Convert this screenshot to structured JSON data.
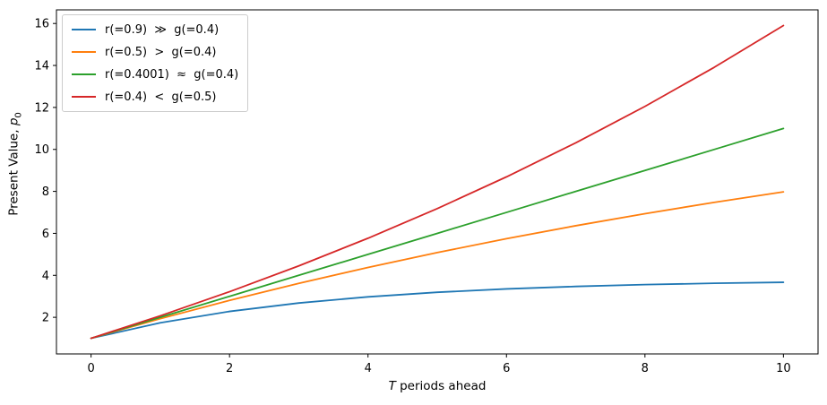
{
  "chart_data": {
    "type": "line",
    "title": "",
    "background_color": "#ffffff",
    "xlabel_var": "T",
    "xlabel_rest": " periods ahead",
    "ylabel_prefix": "Present Value, ",
    "ylabel_var": "p",
    "ylabel_sub": "0",
    "x": [
      0,
      1,
      2,
      3,
      4,
      5,
      6,
      7,
      8,
      9,
      10
    ],
    "xticks": [
      0,
      2,
      4,
      6,
      8,
      10
    ],
    "yticks": [
      2,
      4,
      6,
      8,
      10,
      12,
      14,
      16
    ],
    "xlim": [
      -0.5,
      10.5
    ],
    "ylim": [
      0.255,
      16.649
    ],
    "grid": false,
    "legend_position": "upper left",
    "series": [
      {
        "name": "r(=0.9)  ≫  g(=0.4)",
        "color": "#1f77b4",
        "values": [
          1.0,
          1.7368,
          2.2798,
          2.6799,
          2.9746,
          3.1918,
          3.3519,
          3.4698,
          3.5567,
          3.6207,
          3.6679
        ]
      },
      {
        "name": "r(=0.5)  >  g(=0.4)",
        "color": "#ff7f0e",
        "values": [
          1.0,
          1.9333,
          2.8044,
          3.6175,
          4.3763,
          5.0846,
          5.7456,
          6.3626,
          6.9384,
          7.4758,
          7.9774
        ]
      },
      {
        "name": "r(=0.4001)  ≈  g(=0.4)",
        "color": "#2ca02c",
        "values": [
          1.0,
          1.9999,
          2.9998,
          3.9996,
          4.9993,
          5.9989,
          6.9985,
          7.998,
          8.9974,
          9.9968,
          10.9961
        ]
      },
      {
        "name": "r(=0.4)  <  g(=0.5)",
        "color": "#d62728",
        "values": [
          1.0,
          2.0714,
          3.2194,
          4.4493,
          5.7672,
          7.1791,
          8.6919,
          10.3128,
          12.0494,
          13.91,
          15.9036
        ]
      }
    ]
  }
}
